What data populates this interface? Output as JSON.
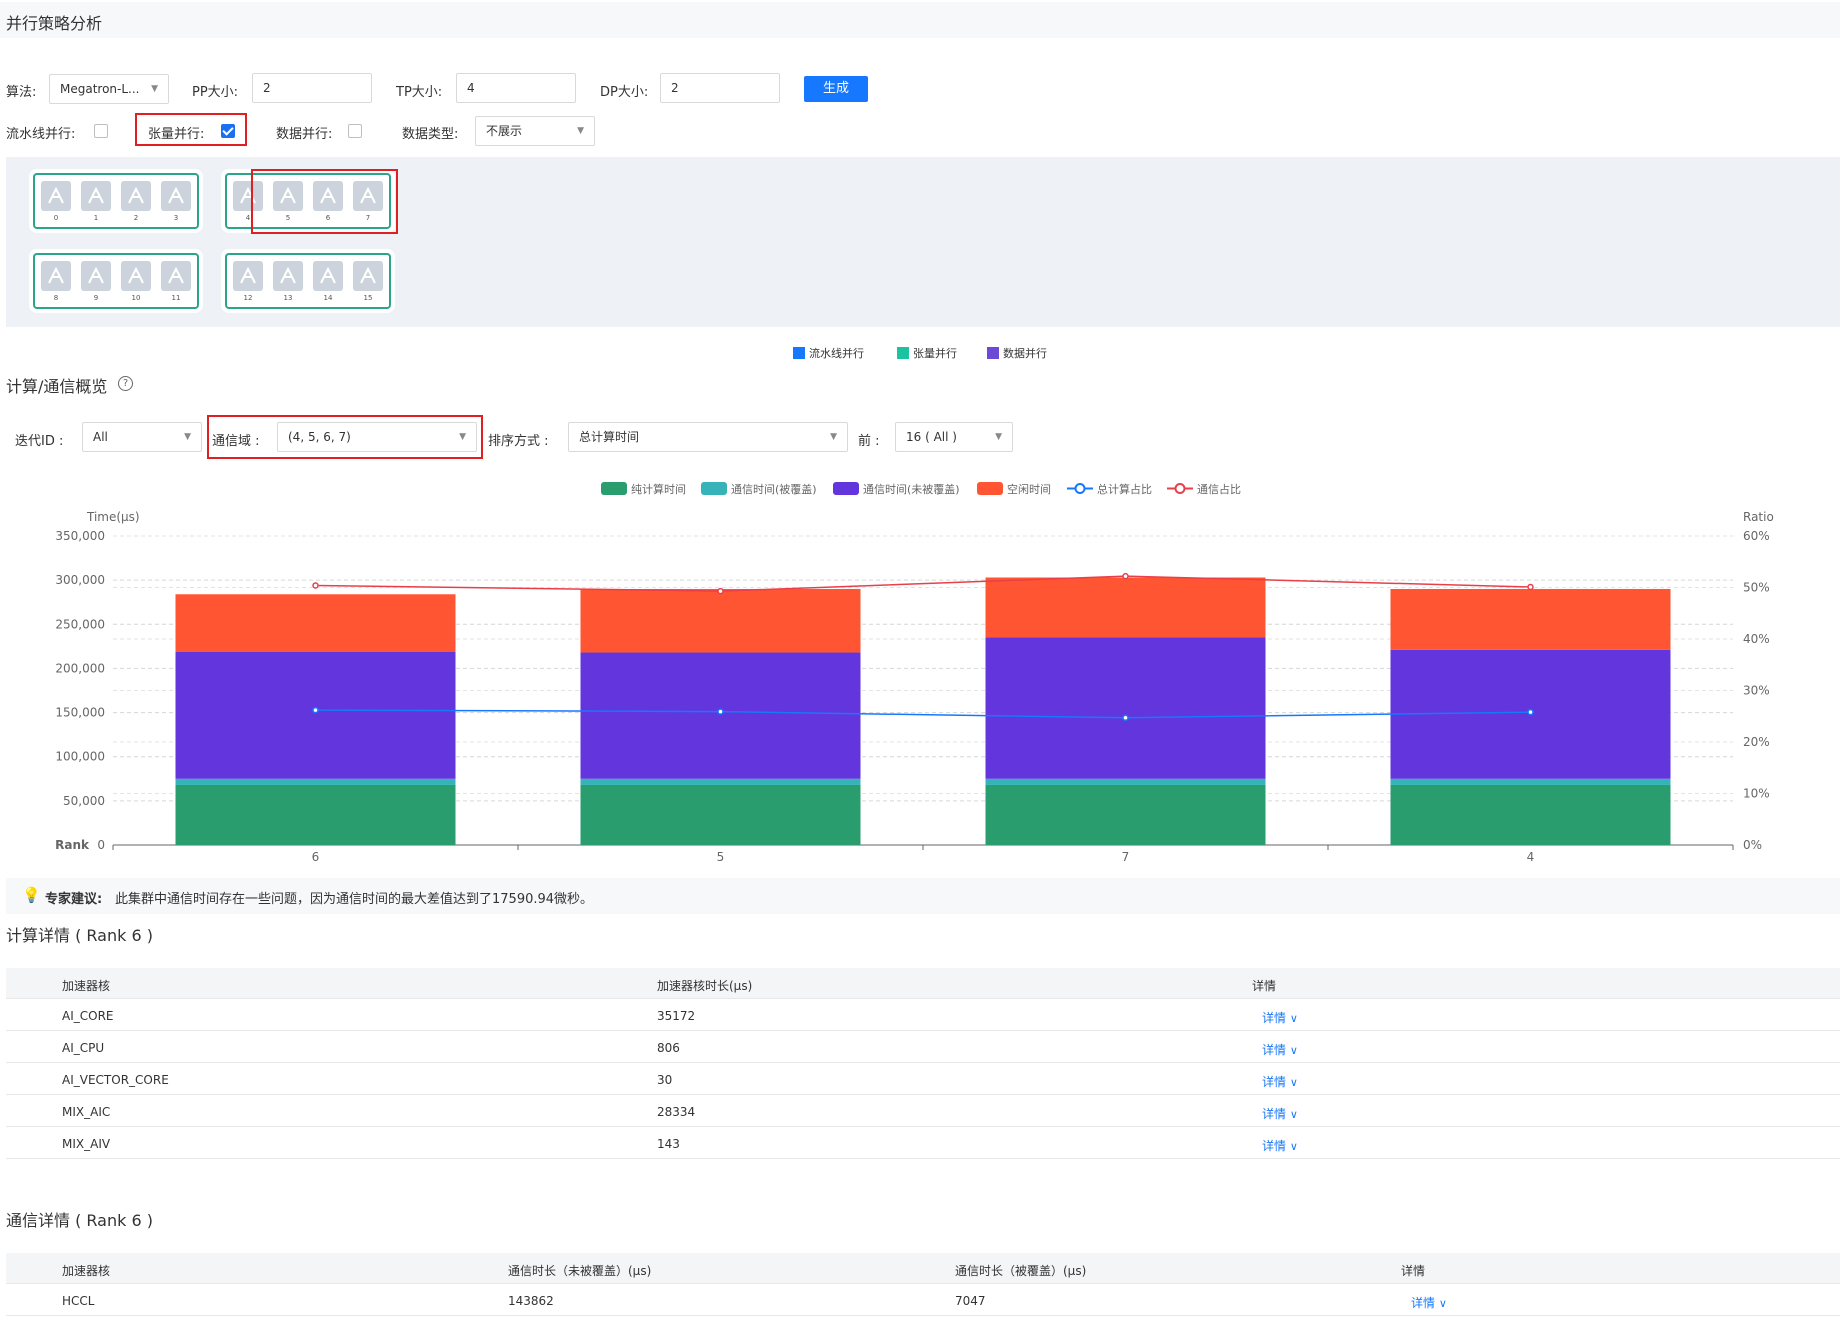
{
  "header": {
    "title": "并行策略分析"
  },
  "controls": {
    "algorithm_label": "算法:",
    "algorithm_value": "Megatron-L...",
    "pp_label": "PP大小:",
    "pp_value": "2",
    "tp_label": "TP大小:",
    "tp_value": "4",
    "dp_label": "DP大小:",
    "dp_value": "2",
    "generate_label": "生成",
    "pipeline_label": "流水线并行:",
    "pipeline_checked": false,
    "tensor_label": "张量并行:",
    "tensor_checked": true,
    "data_label": "数据并行:",
    "data_checked": false,
    "dtype_label": "数据类型:",
    "dtype_value": "不展示"
  },
  "topology": {
    "groups": [
      {
        "ranks": [
          "0",
          "1",
          "2",
          "3"
        ]
      },
      {
        "ranks": [
          "4",
          "5",
          "6",
          "7"
        ]
      },
      {
        "ranks": [
          "8",
          "9",
          "10",
          "11"
        ]
      },
      {
        "ranks": [
          "12",
          "13",
          "14",
          "15"
        ]
      }
    ],
    "legend": [
      {
        "label": "流水线并行",
        "color": "#1677ff"
      },
      {
        "label": "张量并行",
        "color": "#1cc3a1"
      },
      {
        "label": "数据并行",
        "color": "#6c4ad6"
      }
    ]
  },
  "overview": {
    "title": "计算/通信概览",
    "help_icon": "question-circle-icon",
    "iter_label": "迭代ID :",
    "iter_value": "All",
    "comm_label": "通信域 :",
    "comm_value": "(4, 5, 6, 7)",
    "sort_label": "排序方式 :",
    "sort_value": "总计算时间",
    "top_label": "前 :",
    "top_value": "16 ( All )"
  },
  "chart_data": {
    "type": "bar",
    "stacked": true,
    "categories": [
      "6",
      "5",
      "7",
      "4"
    ],
    "xlabel": "Rank",
    "ylabel": "Time(μs)",
    "ylabel_right": "Ratio",
    "ylim": [
      0,
      350000
    ],
    "ylim_right": [
      0,
      60
    ],
    "y_ticks": [
      "0",
      "50,000",
      "100,000",
      "150,000",
      "200,000",
      "250,000",
      "300,000",
      "350,000"
    ],
    "y_right_ticks": [
      "0%",
      "10%",
      "20%",
      "30%",
      "40%",
      "50%",
      "60%"
    ],
    "grid": true,
    "legend_position": "top",
    "series": [
      {
        "name": "纯计算时间",
        "color": "#2a9d6f",
        "values": [
          68000,
          68000,
          68000,
          68000
        ]
      },
      {
        "name": "通信时间(被覆盖)",
        "color": "#36b3b8",
        "values": [
          7000,
          7000,
          7000,
          7000
        ]
      },
      {
        "name": "通信时间(未被覆盖)",
        "color": "#6236dc",
        "values": [
          144000,
          143000,
          160000,
          146000
        ]
      },
      {
        "name": "空闲时间",
        "color": "#ff5532",
        "values": [
          65000,
          72000,
          68000,
          69000
        ]
      }
    ],
    "lines": [
      {
        "name": "总计算占比",
        "color": "#1677ff",
        "axis": "right",
        "values": [
          26.2,
          25.9,
          24.7,
          25.8
        ]
      },
      {
        "name": "通信占比",
        "color": "#e8404a",
        "axis": "right",
        "values": [
          50.4,
          49.3,
          52.2,
          50.1
        ]
      }
    ]
  },
  "advice": {
    "prefix": "专家建议:",
    "text": "此集群中通信时间存在一些问题，因为通信时间的最大差值达到了17590.94微秒。"
  },
  "compute": {
    "title": "计算详情 ( Rank 6 )",
    "headers": [
      "加速器核",
      "加速器核时长(μs)",
      "详情"
    ],
    "rows": [
      {
        "core": "AI_CORE",
        "duration": "35172",
        "detail": "详情"
      },
      {
        "core": "AI_CPU",
        "duration": "806",
        "detail": "详情"
      },
      {
        "core": "AI_VECTOR_CORE",
        "duration": "30",
        "detail": "详情"
      },
      {
        "core": "MIX_AIC",
        "duration": "28334",
        "detail": "详情"
      },
      {
        "core": "MIX_AIV",
        "duration": "143",
        "detail": "详情"
      }
    ]
  },
  "comm": {
    "title": "通信详情 ( Rank 6 )",
    "headers": [
      "加速器核",
      "通信时长（未被覆盖）(μs)",
      "通信时长（被覆盖）(μs)",
      "详情"
    ],
    "rows": [
      {
        "core": "HCCL",
        "uncovered": "143862",
        "covered": "7047",
        "detail": "详情"
      }
    ]
  }
}
